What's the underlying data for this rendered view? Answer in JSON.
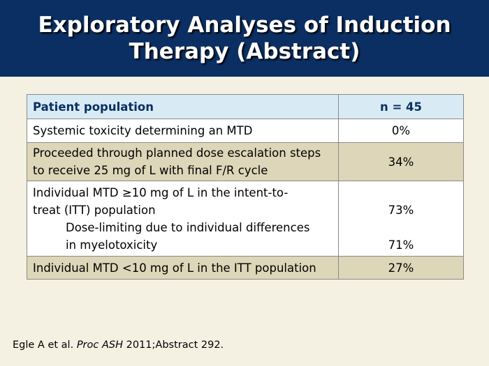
{
  "slide": {
    "title_line1": "Exploratory Analyses of Induction",
    "title_line2": "Therapy (Abstract)"
  },
  "table": {
    "header": {
      "label": "Patient population",
      "value": "n = 45"
    },
    "rows": [
      {
        "label": "Systemic toxicity determining an MTD",
        "value": "0%"
      },
      {
        "label_line1": "Proceeded through planned dose escalation steps",
        "label_line2": "to receive 25 mg of L with final F/R cycle",
        "value": "34%"
      },
      {
        "label_line1": "Individual MTD ≥10 mg of L in the intent-to-",
        "label_line2": "treat (ITT) population",
        "sub_line1": "Dose-limiting due to individual differences",
        "sub_line2": "in myelotoxicity",
        "value": "73%",
        "sub_value": "71%"
      },
      {
        "label": "Individual MTD <10 mg of L in the ITT population",
        "value": "27%"
      }
    ]
  },
  "footnote": {
    "prefix": "Egle A et al. ",
    "journal": "Proc ASH",
    "suffix": " 2011;Abstract 292."
  }
}
